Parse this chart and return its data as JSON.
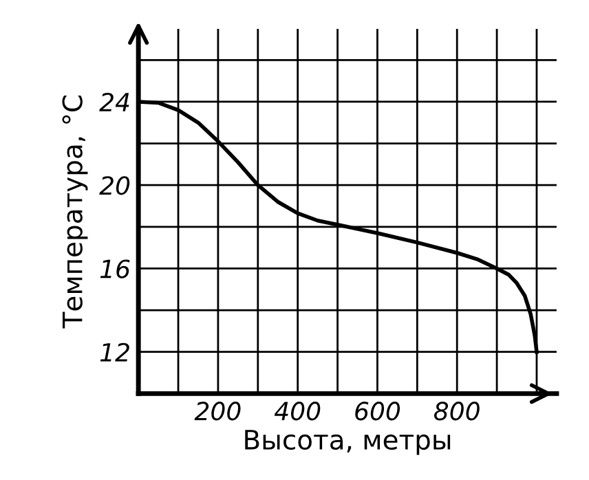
{
  "chart_data": {
    "type": "line",
    "xlabel": "Высота, метры",
    "ylabel": "Температура, °С",
    "x": [
      0,
      50,
      100,
      150,
      200,
      250,
      300,
      350,
      400,
      450,
      500,
      600,
      700,
      800,
      850,
      900,
      930,
      950,
      970,
      985,
      995,
      1000
    ],
    "values": [
      24,
      23.95,
      23.6,
      23,
      22.1,
      21.1,
      20,
      19.2,
      18.65,
      18.3,
      18.1,
      17.7,
      17.25,
      16.75,
      16.45,
      16.0,
      15.7,
      15.3,
      14.7,
      13.8,
      12.8,
      12
    ],
    "color": "#000000",
    "xlim": [
      0,
      1050
    ],
    "ylim": [
      10,
      27.5
    ],
    "xticks": [
      {
        "value": 100,
        "label": null
      },
      200,
      {
        "value": 300,
        "label": null
      },
      400,
      {
        "value": 500,
        "label": null
      },
      600,
      {
        "value": 700,
        "label": null
      },
      800,
      {
        "value": 900,
        "label": null
      },
      {
        "value": 1000,
        "label": null
      }
    ],
    "yticks": [
      12,
      {
        "value": 14,
        "label": null
      },
      16,
      {
        "value": 18,
        "label": null
      },
      20,
      {
        "value": 22,
        "label": null
      },
      24,
      {
        "value": 26,
        "label": null
      }
    ],
    "grid": true,
    "marker": "none",
    "line_style": "solid"
  }
}
